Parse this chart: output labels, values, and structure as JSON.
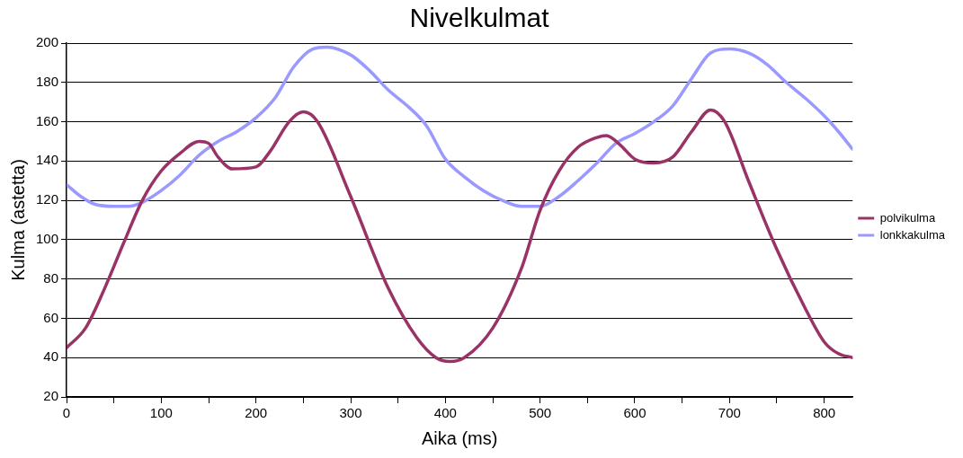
{
  "chart_data": {
    "type": "line",
    "title": "Nivelkulmat",
    "xlabel": "Aika (ms)",
    "ylabel": "Kulma (astetta)",
    "xlim": [
      0,
      830
    ],
    "xticks": [
      0,
      {
        "value": 50,
        "label": null
      },
      100,
      {
        "value": 150,
        "label": null
      },
      200,
      {
        "value": 250,
        "label": null
      },
      300,
      {
        "value": 350,
        "label": null
      },
      400,
      {
        "value": 450,
        "label": null
      },
      500,
      {
        "value": 550,
        "label": null
      },
      600,
      {
        "value": 650,
        "label": null
      },
      700,
      {
        "value": 750,
        "label": null
      },
      800
    ],
    "ylim": [
      20,
      200
    ],
    "yticks": [
      20,
      40,
      60,
      80,
      100,
      120,
      140,
      160,
      180,
      200
    ],
    "grid": "y",
    "legend": "right",
    "marker": "none",
    "line_style": "solid",
    "series": [
      {
        "name": "polvikulma",
        "color": "#993366",
        "x": [
          0,
          20,
          40,
          60,
          80,
          100,
          120,
          140,
          150,
          160,
          175,
          200,
          215,
          235,
          250,
          265,
          300,
          340,
          370,
          390,
          405,
          420,
          450,
          480,
          500,
          520,
          540,
          560,
          570,
          585,
          600,
          620,
          640,
          660,
          680,
          695,
          720,
          750,
          780,
          800,
          815,
          830
        ],
        "values": [
          45,
          55,
          75,
          98,
          120,
          135,
          144,
          150,
          149,
          142,
          136,
          137,
          145,
          160,
          165,
          160,
          122,
          75,
          50,
          40,
          38,
          40,
          55,
          85,
          115,
          135,
          147,
          152,
          153,
          148,
          141,
          139,
          142,
          155,
          166,
          160,
          130,
          95,
          65,
          48,
          42,
          40
        ]
      },
      {
        "name": "lonkkakulma",
        "color": "#9999ff",
        "x": [
          0,
          15,
          30,
          50,
          65,
          80,
          100,
          120,
          140,
          160,
          180,
          200,
          220,
          240,
          260,
          275,
          300,
          320,
          340,
          360,
          380,
          400,
          420,
          440,
          460,
          480,
          500,
          520,
          540,
          560,
          580,
          600,
          620,
          640,
          660,
          680,
          700,
          720,
          740,
          760,
          780,
          800,
          815,
          830
        ],
        "values": [
          128,
          122,
          118,
          117,
          117,
          119,
          125,
          133,
          143,
          150,
          155,
          162,
          172,
          188,
          197,
          198,
          194,
          186,
          176,
          168,
          158,
          141,
          132,
          125,
          120,
          117,
          117,
          122,
          130,
          139,
          149,
          154,
          160,
          168,
          182,
          195,
          197,
          195,
          189,
          180,
          172,
          163,
          155,
          146
        ]
      }
    ]
  }
}
